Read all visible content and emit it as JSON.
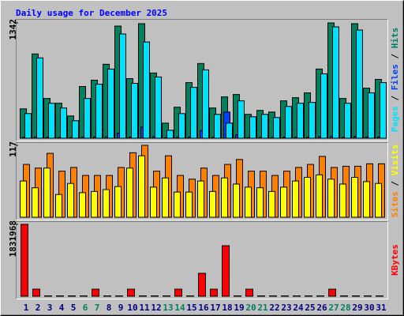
{
  "chart_data": [
    {
      "type": "bar",
      "title": "Daily usage for December 2025",
      "ylim": [
        0,
        1342
      ],
      "yticks": [
        1342
      ],
      "series": [
        {
          "name": "Hits",
          "color": "#00805c",
          "values": [
            342,
            981,
            463,
            407,
            259,
            602,
            676,
            861,
            1305,
            694,
            1333,
            759,
            176,
            361,
            648,
            870,
            352,
            481,
            509,
            278,
            324,
            305,
            435,
            472,
            528,
            805,
            1342,
            463,
            1333,
            583,
            685
          ]
        },
        {
          "name": "Files",
          "color": "#0040ff",
          "values": [
            12,
            15,
            10,
            9,
            8,
            14,
            16,
            18,
            60,
            15,
            130,
            20,
            6,
            10,
            14,
            90,
            12,
            305,
            40,
            8,
            9,
            8,
            12,
            14,
            13,
            20,
            25,
            12,
            22,
            14,
            16
          ]
        },
        {
          "name": "Pages",
          "color": "#00e0ff",
          "values": [
            287,
            935,
            407,
            352,
            204,
            463,
            629,
            805,
            1213,
            639,
            1120,
            713,
            93,
            287,
            592,
            796,
            278,
            176,
            435,
            250,
            278,
            241,
            370,
            407,
            417,
            750,
            1296,
            407,
            1259,
            528,
            648
          ]
        }
      ]
    },
    {
      "type": "bar",
      "ylim": [
        0,
        117
      ],
      "yticks": [
        117
      ],
      "series": [
        {
          "name": "Visits",
          "color": "#ffff00",
          "values": [
            59,
            48,
            80,
            37,
            55,
            40,
            42,
            45,
            50,
            80,
            100,
            49,
            64,
            41,
            41,
            59,
            42,
            64,
            54,
            49,
            48,
            42,
            49,
            59,
            65,
            69,
            62,
            54,
            65,
            58,
            55
          ]
        },
        {
          "name": "Sites",
          "color": "#ff8000",
          "values": [
            86,
            80,
            104,
            75,
            81,
            68,
            68,
            68,
            81,
            105,
            117,
            75,
            100,
            68,
            62,
            80,
            68,
            86,
            94,
            75,
            75,
            68,
            75,
            81,
            86,
            99,
            81,
            83,
            83,
            87,
            87
          ]
        }
      ]
    },
    {
      "type": "bar",
      "ylim": [
        0,
        1831968
      ],
      "yticks": [
        1831968
      ],
      "categories": [
        "1",
        "2",
        "3",
        "4",
        "5",
        "6",
        "7",
        "8",
        "9",
        "10",
        "11",
        "12",
        "13",
        "14",
        "15",
        "16",
        "17",
        "18",
        "19",
        "20",
        "21",
        "22",
        "23",
        "24",
        "25",
        "26",
        "27",
        "28",
        "29",
        "30",
        "31"
      ],
      "category_colors": [
        "#000080",
        "#000080",
        "#000080",
        "#000080",
        "#000080",
        "#00805c",
        "#00805c",
        "#000080",
        "#000080",
        "#000080",
        "#000080",
        "#000080",
        "#00805c",
        "#00805c",
        "#000080",
        "#000080",
        "#000080",
        "#000080",
        "#000080",
        "#00805c",
        "#00805c",
        "#000080",
        "#000080",
        "#000080",
        "#000080",
        "#000080",
        "#00805c",
        "#00805c",
        "#000080",
        "#000080",
        "#000080"
      ],
      "series": [
        {
          "name": "KBytes",
          "color": "#ff0000",
          "values": [
            1831968,
            181000,
            6000,
            5000,
            4000,
            5000,
            180000,
            6000,
            5000,
            180000,
            7000,
            6000,
            4000,
            180000,
            6000,
            584000,
            180000,
            1288000,
            7000,
            180000,
            5000,
            6000,
            5000,
            6000,
            5000,
            7000,
            180000,
            5000,
            6000,
            5000,
            6000
          ]
        }
      ]
    }
  ]
}
